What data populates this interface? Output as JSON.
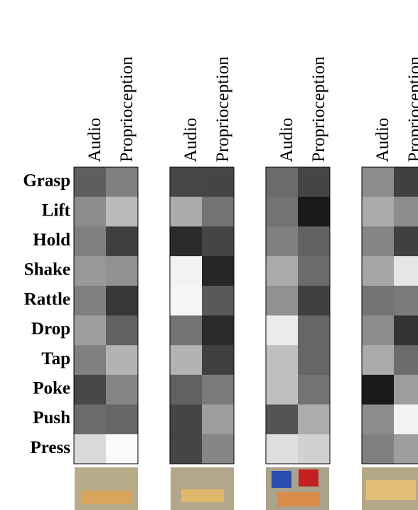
{
  "chart_data": {
    "type": "heatmap",
    "rows": [
      "Grasp",
      "Lift",
      "Hold",
      "Shake",
      "Rattle",
      "Drop",
      "Tap",
      "Poke",
      "Push",
      "Press"
    ],
    "panels": [
      {
        "series": [
          {
            "name": "Audio",
            "values": [
              0.37,
              0.55,
              0.5,
              0.6,
              0.5,
              0.62,
              0.5,
              0.28,
              0.42,
              0.85
            ]
          },
          {
            "name": "Proprioception",
            "values": [
              0.5,
              0.73,
              0.25,
              0.57,
              0.22,
              0.38,
              0.7,
              0.52,
              0.4,
              0.98
            ]
          }
        ]
      },
      {
        "series": [
          {
            "name": "Audio",
            "values": [
              0.28,
              0.67,
              0.17,
              0.95,
              0.96,
              0.45,
              0.7,
              0.38,
              0.27,
              0.27
            ]
          },
          {
            "name": "Proprioception",
            "values": [
              0.27,
              0.45,
              0.27,
              0.15,
              0.35,
              0.17,
              0.25,
              0.48,
              0.62,
              0.52
            ]
          }
        ]
      },
      {
        "series": [
          {
            "name": "Audio",
            "values": [
              0.42,
              0.45,
              0.5,
              0.67,
              0.57,
              0.92,
              0.75,
              0.75,
              0.33,
              0.87
            ]
          },
          {
            "name": "Proprioception",
            "values": [
              0.27,
              0.1,
              0.38,
              0.42,
              0.25,
              0.4,
              0.4,
              0.45,
              0.68,
              0.82
            ]
          }
        ]
      },
      {
        "series": [
          {
            "name": "Audio",
            "values": [
              0.55,
              0.67,
              0.52,
              0.65,
              0.45,
              0.55,
              0.67,
              0.1,
              0.55,
              0.5
            ]
          },
          {
            "name": "Proprioception",
            "values": [
              0.25,
              0.55,
              0.25,
              0.9,
              0.48,
              0.2,
              0.42,
              0.62,
              0.95,
              0.62
            ]
          }
        ]
      }
    ]
  }
}
